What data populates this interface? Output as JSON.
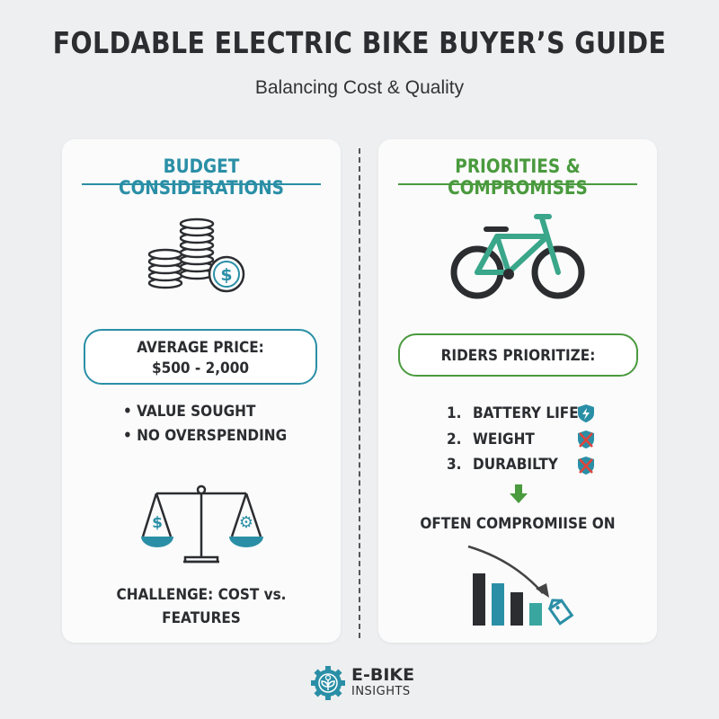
{
  "header": {
    "title": "FOLDABLE ELECTRIC BIKE BUYER’S GUIDE",
    "subtitle": "Balancing Cost & Quality"
  },
  "left": {
    "heading": "BUDGET CONSIDERATIONS",
    "icon": "coins-dollar-icon",
    "price_label": "AVERAGE PRICE:",
    "price_value": "$500 - 2,000",
    "bullets": [
      "VALUE SOUGHT",
      "NO OVERSPENDING"
    ],
    "scale_icon": "balance-scale-icon",
    "challenge_line1": "CHALLENGE: COST vs.",
    "challenge_line2": "FEATURES"
  },
  "right": {
    "heading": "PRIORITIES & COMPROMISES",
    "icon": "bicycle-icon",
    "box_label": "RIDERS PRIORITIZE:",
    "priorities": [
      {
        "num": "1.",
        "label": "BATTERY LIFE",
        "icon": "shield-bolt-icon"
      },
      {
        "num": "2.",
        "label": "WEIGHT",
        "icon": "shield-x-icon"
      },
      {
        "num": "3.",
        "label": "DURABILTY",
        "icon": "shield-x-icon"
      }
    ],
    "compromise_label": "OFTEN COMPROMIISE ON",
    "chart_icon": "declining-bars-price-tag-icon"
  },
  "footer": {
    "brand_line1": "E-BIKE",
    "brand_line2": "INSIGHTS"
  },
  "colors": {
    "teal": "#2a8fa6",
    "green": "#4a9a3e",
    "dark": "#2b2d30",
    "red": "#e0443a",
    "bike": "#3aa68a"
  }
}
